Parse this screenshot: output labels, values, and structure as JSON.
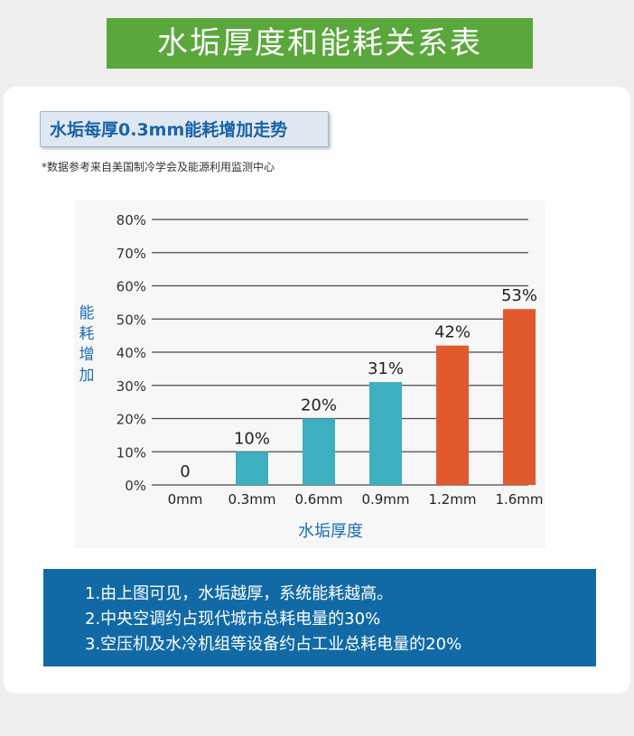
{
  "header": {
    "title": "水垢厚度和能耗关系表"
  },
  "subtitle": "水垢每厚0.3mm能耗增加走势",
  "source_note": "*数据参考来自美国制冷学会及能源利用监测中心",
  "chart_data": {
    "type": "bar",
    "title": "水垢每厚0.3mm能耗增加走势",
    "categories": [
      "0mm",
      "0.3mm",
      "0.6mm",
      "0.9mm",
      "1.2mm",
      "1.6mm"
    ],
    "values": [
      0,
      10,
      20,
      31,
      42,
      53
    ],
    "value_labels": [
      "0",
      "10%",
      "20%",
      "31%",
      "42%",
      "53%"
    ],
    "bar_colors": [
      "#3db0c0",
      "#3db0c0",
      "#3db0c0",
      "#3db0c0",
      "#e05a2e",
      "#e05a2e"
    ],
    "xlabel": "水垢厚度",
    "ylabel": "能耗增加",
    "ylim": [
      0,
      80
    ],
    "yticks": [
      "0%",
      "10%",
      "20%",
      "30%",
      "40%",
      "50%",
      "60%",
      "70%",
      "80%"
    ],
    "grid": true
  },
  "notes": [
    "1.由上图可见，水垢越厚，系统能耗越高。",
    "2.中央空调约占现代城市总耗电量的30%",
    "3.空压机及水冷机组等设备约占工业总耗电量的20%"
  ],
  "colors": {
    "banner": "#5aa83c",
    "accent_blue": "#1a63a8",
    "notes_bg": "#116aa6",
    "bar_teal": "#3db0c0",
    "bar_orange": "#e05a2e"
  }
}
